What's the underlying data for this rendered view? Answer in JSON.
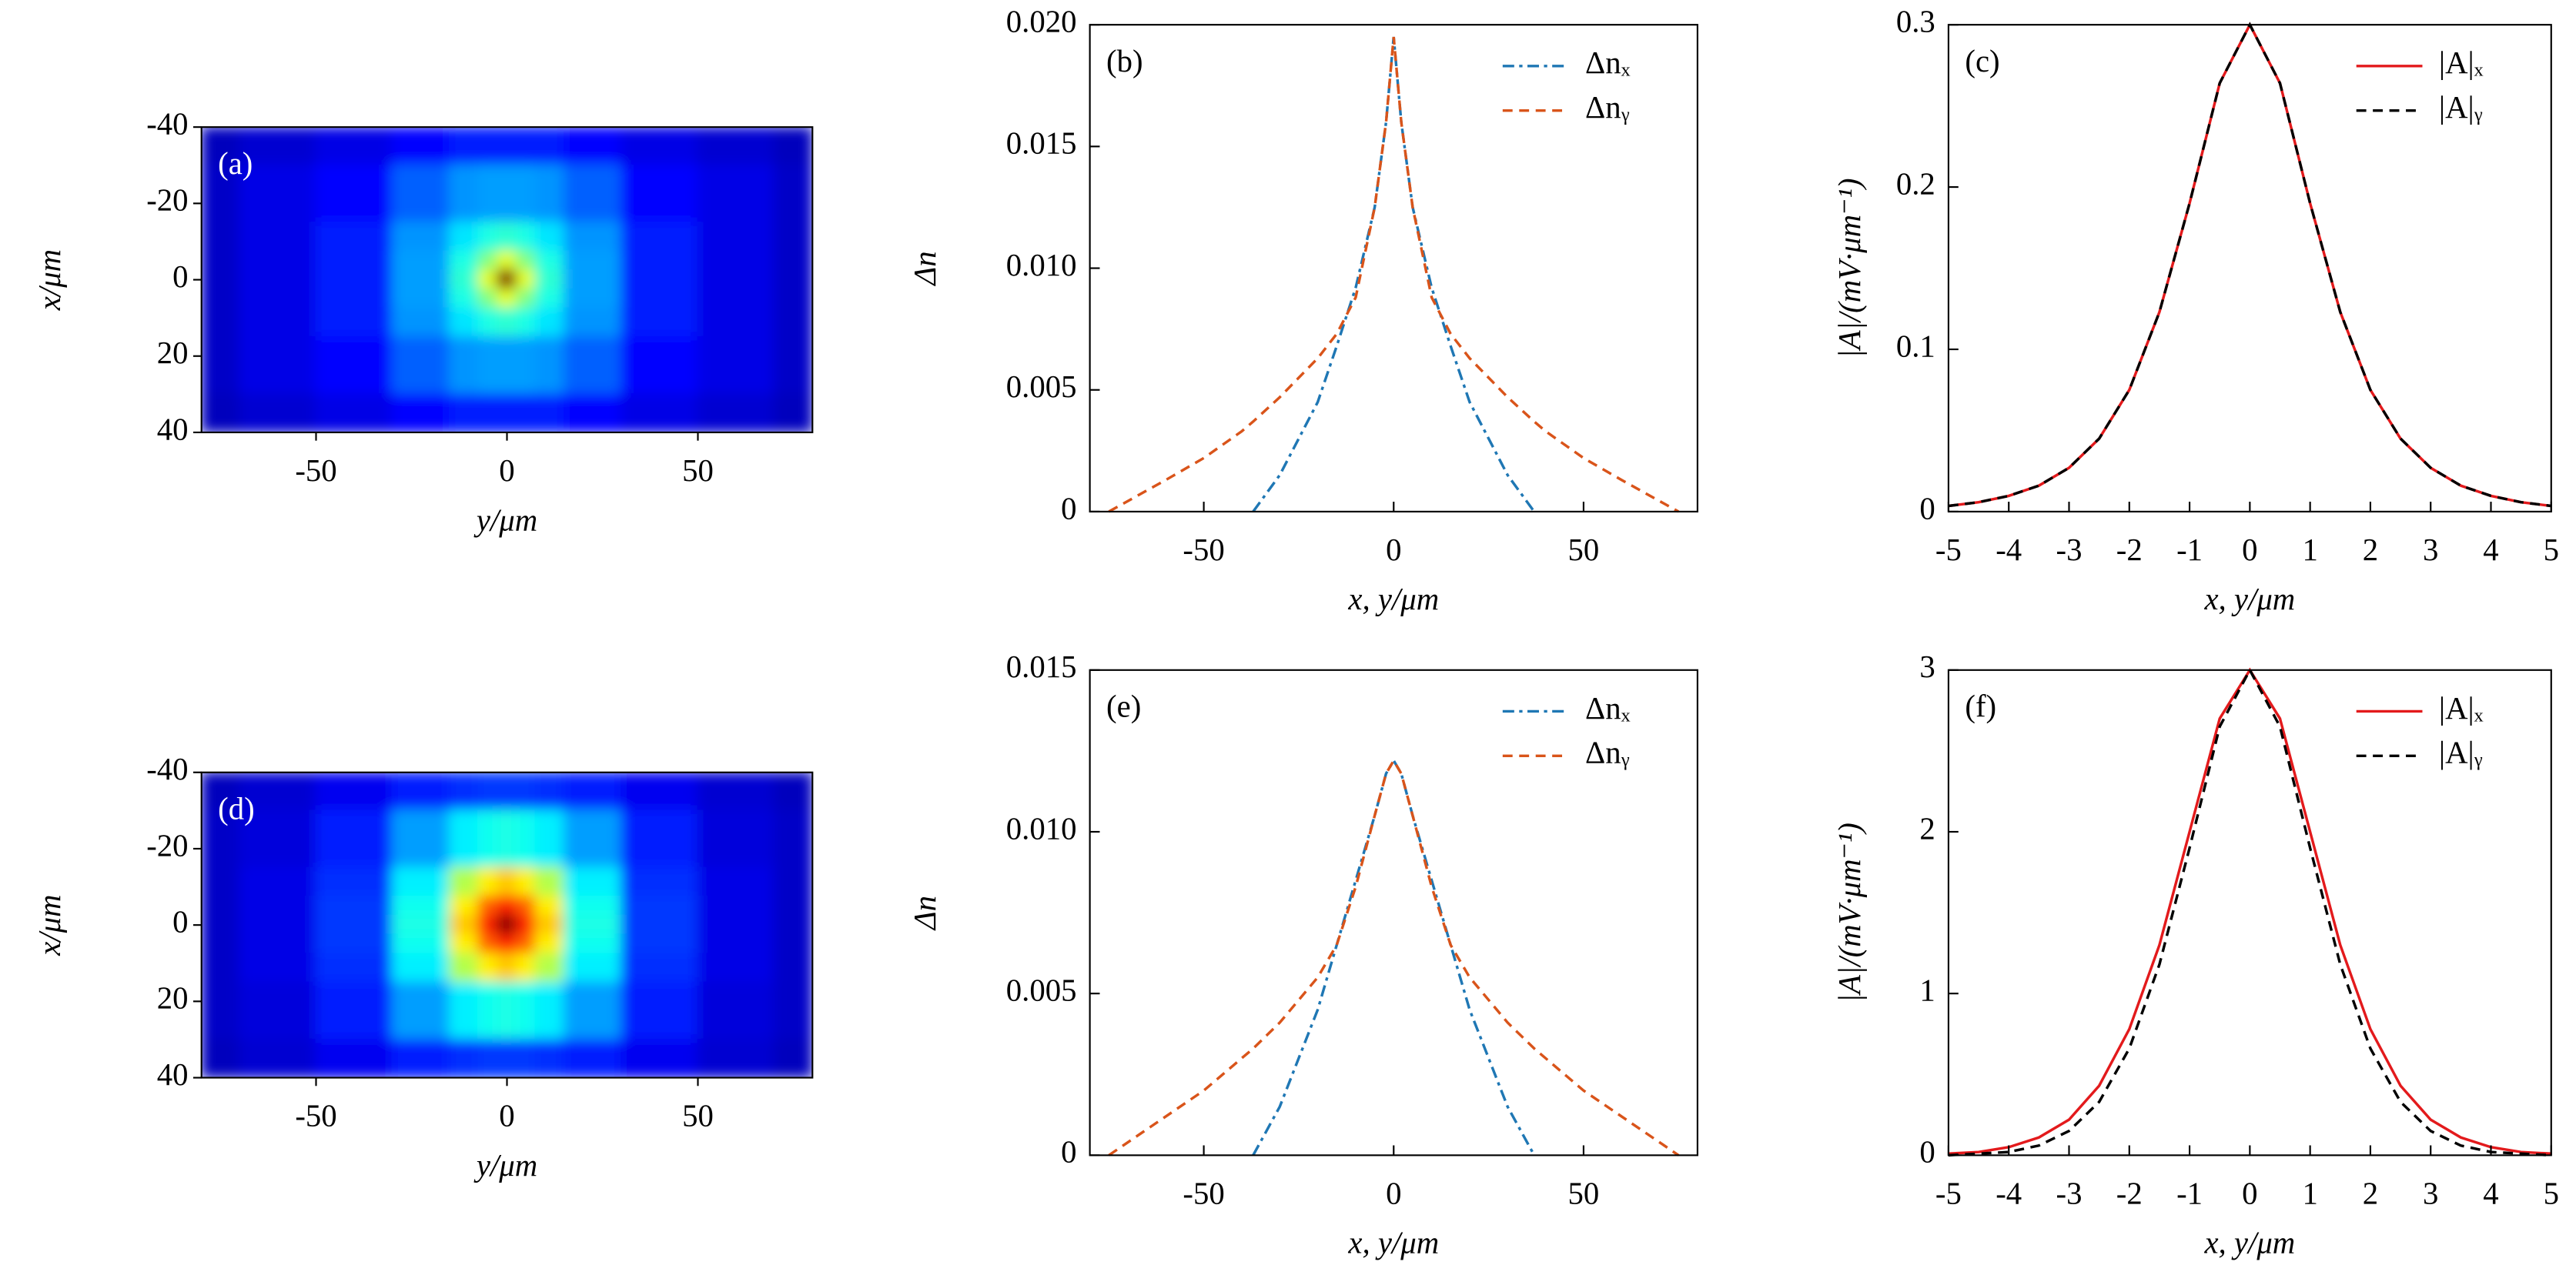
{
  "chart_data": [
    {
      "type": "heatmap",
      "label": "(a)",
      "xlabel": "y/μm",
      "ylabel": "x/μm",
      "colormap": "jet",
      "x": [
        -80,
        -60,
        -40,
        -20,
        -10,
        -5,
        0,
        5,
        10,
        20,
        40,
        60,
        80
      ],
      "y": [
        -40,
        -20,
        -10,
        -5,
        0,
        5,
        10,
        20,
        40
      ],
      "z": [
        [
          0.06,
          0.08,
          0.1,
          0.13,
          0.15,
          0.15,
          0.15,
          0.15,
          0.15,
          0.13,
          0.1,
          0.08,
          0.06
        ],
        [
          0.07,
          0.1,
          0.13,
          0.22,
          0.27,
          0.28,
          0.28,
          0.28,
          0.27,
          0.22,
          0.13,
          0.1,
          0.07
        ],
        [
          0.07,
          0.1,
          0.15,
          0.27,
          0.35,
          0.4,
          0.42,
          0.4,
          0.35,
          0.27,
          0.15,
          0.1,
          0.07
        ],
        [
          0.07,
          0.1,
          0.15,
          0.28,
          0.4,
          0.5,
          0.6,
          0.5,
          0.4,
          0.28,
          0.15,
          0.1,
          0.07
        ],
        [
          0.07,
          0.1,
          0.15,
          0.28,
          0.42,
          0.6,
          1.0,
          0.6,
          0.42,
          0.28,
          0.15,
          0.1,
          0.07
        ],
        [
          0.07,
          0.1,
          0.15,
          0.28,
          0.4,
          0.5,
          0.6,
          0.5,
          0.4,
          0.28,
          0.15,
          0.1,
          0.07
        ],
        [
          0.07,
          0.1,
          0.15,
          0.27,
          0.35,
          0.4,
          0.42,
          0.4,
          0.35,
          0.27,
          0.15,
          0.1,
          0.07
        ],
        [
          0.07,
          0.1,
          0.13,
          0.22,
          0.27,
          0.28,
          0.28,
          0.28,
          0.27,
          0.22,
          0.13,
          0.1,
          0.07
        ],
        [
          0.06,
          0.08,
          0.1,
          0.13,
          0.15,
          0.15,
          0.15,
          0.15,
          0.15,
          0.13,
          0.1,
          0.08,
          0.06
        ]
      ],
      "xlim": [
        -80,
        80
      ],
      "xticks": [
        -50,
        0,
        50
      ],
      "ylim": [
        40,
        -40
      ],
      "yticks": [
        -40,
        -20,
        0,
        20,
        40
      ]
    },
    {
      "type": "line",
      "label": "(b)",
      "xlabel": "x, y/μm",
      "ylabel": "Δn",
      "legend": "upper right",
      "x": [
        -75,
        -60,
        -50,
        -40,
        -37,
        -30,
        -20,
        -15,
        -10,
        -5,
        -2,
        0,
        2,
        5,
        10,
        15,
        20,
        30,
        37,
        40,
        50,
        60,
        75
      ],
      "series": [
        {
          "name": "Δnₓ",
          "color": "#1f77b4",
          "linestyle": "dashdot",
          "values": [
            null,
            null,
            null,
            null,
            0,
            0.0015,
            0.0045,
            0.0068,
            0.0092,
            0.0125,
            0.016,
            0.0195,
            0.016,
            0.0125,
            0.0092,
            0.0068,
            0.0045,
            0.0015,
            0,
            null,
            null,
            null,
            null
          ]
        },
        {
          "name": "Δnᵧ",
          "color": "#d9541a",
          "linestyle": "dashed",
          "values": [
            0,
            0.0013,
            0.0022,
            0.0033,
            0.0037,
            0.0047,
            0.0063,
            0.0073,
            0.0088,
            0.0125,
            0.016,
            0.0195,
            0.016,
            0.0125,
            0.0088,
            0.0073,
            0.0063,
            0.0047,
            0.0037,
            0.0033,
            0.0022,
            0.0013,
            0
          ]
        }
      ],
      "xlim": [
        -80,
        80
      ],
      "xticks": [
        -50,
        0,
        50
      ],
      "ylim": [
        0,
        0.02
      ],
      "yticks": [
        0,
        0.005,
        {
          "value": 0.01,
          "label": "0.010"
        },
        0.015,
        {
          "value": 0.02,
          "label": "0.020"
        }
      ]
    },
    {
      "type": "line",
      "label": "(c)",
      "xlabel": "x, y/μm",
      "ylabel": "|A|/(mV·μm⁻¹)",
      "legend": "upper right",
      "x": [
        -5,
        -4.5,
        -4,
        -3.5,
        -3,
        -2.5,
        -2,
        -1.5,
        -1,
        -0.5,
        0,
        0.5,
        1,
        1.5,
        2,
        2.5,
        3,
        3.5,
        4,
        4.5,
        5
      ],
      "series": [
        {
          "name": "|A|ₓ",
          "color": "#e31a1c",
          "linestyle": "solid",
          "values": [
            0.0035,
            0.0058,
            0.0097,
            0.016,
            0.027,
            0.045,
            0.075,
            0.123,
            0.19,
            0.264,
            0.3,
            0.264,
            0.19,
            0.123,
            0.075,
            0.045,
            0.027,
            0.016,
            0.0097,
            0.0058,
            0.0035
          ]
        },
        {
          "name": "|A|ᵧ",
          "color": "#000000",
          "linestyle": "dashed",
          "values": [
            0.0035,
            0.0058,
            0.0097,
            0.016,
            0.027,
            0.045,
            0.075,
            0.123,
            0.19,
            0.264,
            0.3,
            0.264,
            0.19,
            0.123,
            0.075,
            0.045,
            0.027,
            0.016,
            0.0097,
            0.0058,
            0.0035
          ]
        }
      ],
      "xlim": [
        -5,
        5
      ],
      "xticks": [
        -5,
        -4,
        -3,
        -2,
        -1,
        0,
        1,
        2,
        3,
        4,
        5
      ],
      "ylim": [
        0,
        0.3
      ],
      "yticks": [
        0,
        0.1,
        0.2,
        0.3
      ]
    },
    {
      "type": "heatmap",
      "label": "(d)",
      "xlabel": "y/μm",
      "ylabel": "x/μm",
      "colormap": "jet",
      "x": [
        -80,
        -60,
        -40,
        -20,
        -10,
        -5,
        0,
        5,
        10,
        20,
        40,
        60,
        80
      ],
      "y": [
        -40,
        -20,
        -10,
        -5,
        0,
        5,
        10,
        20,
        40
      ],
      "z": [
        [
          0.06,
          0.08,
          0.11,
          0.15,
          0.17,
          0.18,
          0.18,
          0.18,
          0.17,
          0.15,
          0.11,
          0.08,
          0.06
        ],
        [
          0.07,
          0.09,
          0.15,
          0.28,
          0.36,
          0.39,
          0.4,
          0.39,
          0.36,
          0.28,
          0.15,
          0.09,
          0.07
        ],
        [
          0.07,
          0.1,
          0.17,
          0.36,
          0.55,
          0.64,
          0.68,
          0.64,
          0.55,
          0.36,
          0.17,
          0.1,
          0.07
        ],
        [
          0.07,
          0.1,
          0.18,
          0.39,
          0.64,
          0.78,
          0.85,
          0.78,
          0.64,
          0.39,
          0.18,
          0.1,
          0.07
        ],
        [
          0.07,
          0.1,
          0.18,
          0.4,
          0.68,
          0.85,
          1.0,
          0.85,
          0.68,
          0.4,
          0.18,
          0.1,
          0.07
        ],
        [
          0.07,
          0.1,
          0.18,
          0.39,
          0.64,
          0.78,
          0.85,
          0.78,
          0.64,
          0.39,
          0.18,
          0.1,
          0.07
        ],
        [
          0.07,
          0.1,
          0.17,
          0.36,
          0.55,
          0.64,
          0.68,
          0.64,
          0.55,
          0.36,
          0.17,
          0.1,
          0.07
        ],
        [
          0.07,
          0.09,
          0.15,
          0.28,
          0.36,
          0.39,
          0.4,
          0.39,
          0.36,
          0.28,
          0.15,
          0.09,
          0.07
        ],
        [
          0.06,
          0.08,
          0.11,
          0.15,
          0.17,
          0.18,
          0.18,
          0.18,
          0.17,
          0.15,
          0.11,
          0.08,
          0.06
        ]
      ],
      "xlim": [
        -80,
        80
      ],
      "xticks": [
        -50,
        0,
        50
      ],
      "ylim": [
        40,
        -40
      ],
      "yticks": [
        -40,
        -20,
        0,
        20,
        40
      ]
    },
    {
      "type": "line",
      "label": "(e)",
      "xlabel": "x, y/μm",
      "ylabel": "Δn",
      "legend": "upper right",
      "x": [
        -75,
        -60,
        -50,
        -40,
        -37,
        -30,
        -20,
        -15,
        -10,
        -5,
        -2,
        0,
        2,
        5,
        10,
        15,
        20,
        30,
        37,
        40,
        50,
        60,
        75
      ],
      "series": [
        {
          "name": "Δnₓ",
          "color": "#1f77b4",
          "linestyle": "dashdot",
          "values": [
            null,
            null,
            null,
            null,
            0,
            0.0015,
            0.0045,
            0.0065,
            0.0085,
            0.0105,
            0.0118,
            0.0122,
            0.0118,
            0.0105,
            0.0085,
            0.0065,
            0.0045,
            0.0015,
            0,
            null,
            null,
            null,
            null
          ]
        },
        {
          "name": "Δnᵧ",
          "color": "#d9541a",
          "linestyle": "dashed",
          "values": [
            0,
            0.0012,
            0.002,
            0.003,
            0.0033,
            0.0041,
            0.0055,
            0.0065,
            0.0083,
            0.0105,
            0.0118,
            0.0122,
            0.0118,
            0.0105,
            0.0083,
            0.0065,
            0.0055,
            0.0041,
            0.0033,
            0.003,
            0.002,
            0.0012,
            0
          ]
        }
      ],
      "xlim": [
        -80,
        80
      ],
      "xticks": [
        -50,
        0,
        50
      ],
      "ylim": [
        0,
        0.015
      ],
      "yticks": [
        0,
        0.005,
        {
          "value": 0.01,
          "label": "0.010"
        },
        0.015
      ]
    },
    {
      "type": "line",
      "label": "(f)",
      "xlabel": "x, y/μm",
      "ylabel": "|A|/(mV·μm⁻¹)",
      "legend": "upper right",
      "x": [
        -5,
        -4.5,
        -4,
        -3.5,
        -3,
        -2.5,
        -2,
        -1.5,
        -1,
        -0.5,
        0,
        0.5,
        1,
        1.5,
        2,
        2.5,
        3,
        3.5,
        4,
        4.5,
        5
      ],
      "series": [
        {
          "name": "|A|ₓ",
          "color": "#e31a1c",
          "linestyle": "solid",
          "values": [
            0.01,
            0.02,
            0.05,
            0.11,
            0.22,
            0.43,
            0.78,
            1.3,
            2.0,
            2.7,
            3,
            2.7,
            2.0,
            1.3,
            0.78,
            0.43,
            0.22,
            0.11,
            0.05,
            0.02,
            0.01
          ]
        },
        {
          "name": "|A|ᵧ",
          "color": "#000000",
          "linestyle": "dashed",
          "values": [
            0,
            0.01,
            0.02,
            0.06,
            0.15,
            0.33,
            0.66,
            1.18,
            1.9,
            2.65,
            3,
            2.65,
            1.9,
            1.18,
            0.66,
            0.33,
            0.15,
            0.06,
            0.02,
            0.01,
            0
          ]
        }
      ],
      "xlim": [
        -5,
        5
      ],
      "xticks": [
        -5,
        -4,
        -3,
        -2,
        -1,
        0,
        1,
        2,
        3,
        4,
        5
      ],
      "ylim": [
        0,
        3
      ],
      "yticks": [
        0,
        1,
        2,
        3
      ]
    }
  ]
}
